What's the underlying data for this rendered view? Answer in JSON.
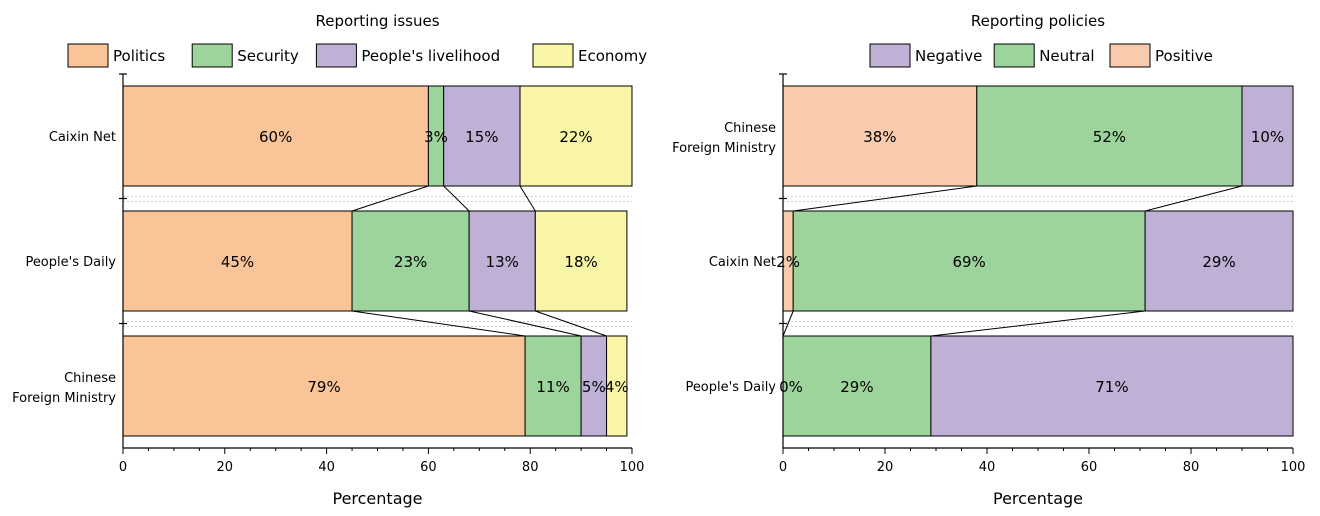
{
  "chart_data": [
    {
      "type": "bar",
      "orientation": "horizontal",
      "stacked": "percent",
      "title": "Reporting issues",
      "xlabel": "Percentage",
      "ylabel": "",
      "xlim": [
        0,
        100
      ],
      "xticks": [
        0,
        20,
        40,
        60,
        80,
        100
      ],
      "legend_position": "top",
      "grid": false,
      "connector_lines": true,
      "categories": [
        [
          "Caixin Net"
        ],
        [
          "People's Daily"
        ],
        [
          "Chinese",
          "Foreign Ministry"
        ]
      ],
      "series": [
        {
          "name": "Politics",
          "color": "#F9C598",
          "values": [
            60,
            45,
            79
          ],
          "labels": [
            "60%",
            "45%",
            "79%"
          ]
        },
        {
          "name": "Security",
          "color": "#9DD49B",
          "values": [
            3,
            23,
            11
          ],
          "labels": [
            "3%",
            "23%",
            "11%"
          ]
        },
        {
          "name": "People's livelihood",
          "color": "#BFB0D6",
          "values": [
            15,
            13,
            5
          ],
          "labels": [
            "15%",
            "13%",
            "5%"
          ]
        },
        {
          "name": "Economy",
          "color": "#F9F5A6",
          "values": [
            22,
            18,
            4
          ],
          "labels": [
            "22%",
            "18%",
            "4%"
          ]
        }
      ]
    },
    {
      "type": "bar",
      "orientation": "horizontal",
      "stacked": "percent",
      "title": "Reporting policies",
      "xlabel": "Percentage",
      "ylabel": "",
      "xlim": [
        0,
        100
      ],
      "xticks": [
        0,
        20,
        40,
        60,
        80,
        100
      ],
      "legend_position": "top",
      "grid": false,
      "connector_lines": true,
      "categories": [
        [
          "Chinese",
          "Foreign Ministry"
        ],
        [
          "Caixin Net"
        ],
        [
          "People's Daily"
        ]
      ],
      "series": [
        {
          "name": "Positive",
          "color": "#F8CBAD",
          "values": [
            38,
            2,
            0
          ],
          "labels": [
            "38%",
            "2%",
            "0%"
          ]
        },
        {
          "name": "Neutral",
          "color": "#9DD49B",
          "values": [
            52,
            69,
            29
          ],
          "labels": [
            "52%",
            "69%",
            "29%"
          ]
        },
        {
          "name": "Negative",
          "color": "#BFB0D6",
          "values": [
            10,
            29,
            71
          ],
          "labels": [
            "10%",
            "29%",
            "71%"
          ]
        }
      ],
      "legend_order": [
        "Negative",
        "Neutral",
        "Positive"
      ]
    }
  ]
}
